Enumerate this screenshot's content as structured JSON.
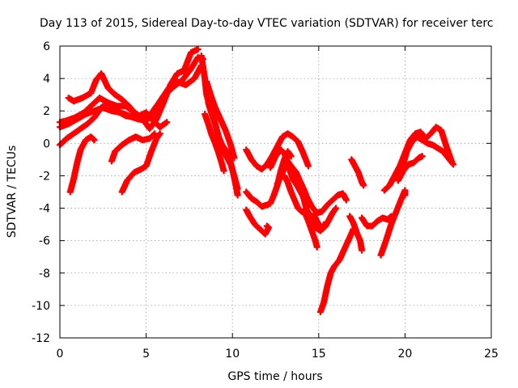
{
  "chart_data": {
    "type": "scatter",
    "title": "Day 113 of 2015, Sidereal Day-to-day VTEC variation (SDTVAR) for receiver terc",
    "xlabel": "GPS time / hours",
    "ylabel": "SDTVAR / TECUs",
    "xlim": [
      0,
      25
    ],
    "ylim": [
      -12,
      6
    ],
    "xticks": [
      0,
      5,
      10,
      15,
      20,
      25
    ],
    "yticks": [
      -12,
      -10,
      -8,
      -6,
      -4,
      -2,
      0,
      2,
      4,
      6
    ],
    "grid": true,
    "legend": "none",
    "marker": "+",
    "color": "#ff0000",
    "series": [
      {
        "values": [
          [
            0.0,
            1.3
          ],
          [
            0.4,
            1.4
          ],
          [
            0.9,
            1.6
          ],
          [
            1.4,
            1.9
          ],
          [
            1.9,
            2.4
          ],
          [
            2.3,
            2.8
          ],
          [
            2.8,
            2.5
          ],
          [
            3.3,
            2.0
          ],
          [
            3.8,
            1.7
          ],
          [
            4.3,
            1.6
          ],
          [
            4.8,
            1.5
          ],
          [
            5.2,
            1.7
          ],
          [
            5.6,
            2.3
          ],
          [
            6.1,
            3.0
          ],
          [
            6.6,
            3.5
          ],
          [
            7.1,
            3.9
          ],
          [
            7.6,
            4.6
          ],
          [
            8.0,
            5.3
          ],
          [
            8.3,
            5.2
          ]
        ]
      },
      {
        "values": [
          [
            0.0,
            1.0
          ],
          [
            0.5,
            1.2
          ],
          [
            1.0,
            1.5
          ],
          [
            1.5,
            1.8
          ],
          [
            2.0,
            2.0
          ],
          [
            2.5,
            2.2
          ],
          [
            3.0,
            2.0
          ],
          [
            3.5,
            1.9
          ],
          [
            4.0,
            1.7
          ],
          [
            4.5,
            1.5
          ],
          [
            5.0,
            1.4
          ],
          [
            5.4,
            1.8
          ],
          [
            5.8,
            2.6
          ],
          [
            6.3,
            3.4
          ],
          [
            6.8,
            3.8
          ],
          [
            7.3,
            3.6
          ],
          [
            7.8,
            4.0
          ],
          [
            8.2,
            4.8
          ]
        ]
      },
      {
        "values": [
          [
            0.5,
            2.8
          ],
          [
            0.8,
            2.6
          ],
          [
            1.3,
            2.8
          ],
          [
            1.8,
            3.1
          ],
          [
            2.1,
            3.9
          ],
          [
            2.4,
            4.3
          ],
          [
            2.8,
            3.4
          ],
          [
            3.2,
            3.0
          ],
          [
            3.6,
            2.7
          ],
          [
            4.0,
            2.3
          ],
          [
            4.4,
            1.8
          ],
          [
            4.8,
            1.5
          ],
          [
            5.2,
            0.9
          ],
          [
            5.6,
            1.5
          ],
          [
            6.0,
            2.5
          ],
          [
            6.4,
            3.6
          ],
          [
            6.8,
            4.3
          ],
          [
            7.2,
            4.5
          ],
          [
            7.6,
            5.6
          ],
          [
            8.0,
            5.8
          ]
        ]
      },
      {
        "values": [
          [
            0.0,
            -0.1
          ],
          [
            0.4,
            0.3
          ],
          [
            0.8,
            0.6
          ],
          [
            1.2,
            0.9
          ],
          [
            1.6,
            1.2
          ],
          [
            2.0,
            1.6
          ],
          [
            2.4,
            2.2
          ],
          [
            2.8,
            2.5
          ],
          [
            3.3,
            2.3
          ],
          [
            3.8,
            2.3
          ],
          [
            4.2,
            2.0
          ],
          [
            4.6,
            1.7
          ],
          [
            5.0,
            1.9
          ],
          [
            5.4,
            1.4
          ],
          [
            5.8,
            1.0
          ],
          [
            6.2,
            1.3
          ]
        ]
      },
      {
        "values": [
          [
            0.6,
            -3.0
          ],
          [
            0.8,
            -2.2
          ],
          [
            1.0,
            -1.2
          ],
          [
            1.2,
            -0.4
          ],
          [
            1.5,
            0.2
          ],
          [
            1.8,
            0.4
          ],
          [
            2.0,
            0.2
          ]
        ]
      },
      {
        "values": [
          [
            3.0,
            -1.1
          ],
          [
            3.2,
            -0.5
          ],
          [
            3.6,
            -0.1
          ],
          [
            4.0,
            0.2
          ],
          [
            4.4,
            0.4
          ],
          [
            4.8,
            0.2
          ],
          [
            5.2,
            0.3
          ],
          [
            5.5,
            0.6
          ]
        ]
      },
      {
        "values": [
          [
            3.6,
            -3.0
          ],
          [
            3.9,
            -2.3
          ],
          [
            4.3,
            -1.8
          ],
          [
            4.7,
            -1.6
          ],
          [
            5.0,
            -1.4
          ],
          [
            5.3,
            -0.5
          ],
          [
            5.6,
            0.3
          ],
          [
            5.8,
            0.6
          ]
        ]
      },
      {
        "values": [
          [
            8.2,
            5.4
          ],
          [
            8.4,
            4.0
          ],
          [
            8.5,
            3.0
          ],
          [
            8.7,
            2.2
          ],
          [
            8.9,
            1.6
          ],
          [
            9.1,
            0.8
          ],
          [
            9.3,
            0.0
          ],
          [
            9.5,
            -0.5
          ],
          [
            9.7,
            -0.9
          ],
          [
            9.9,
            -1.3
          ],
          [
            10.1,
            -2.0
          ],
          [
            10.3,
            -2.8
          ]
        ]
      },
      {
        "values": [
          [
            8.6,
            2.5
          ],
          [
            8.8,
            1.8
          ],
          [
            9.0,
            1.2
          ],
          [
            9.2,
            0.4
          ],
          [
            9.4,
            -0.1
          ],
          [
            9.6,
            -0.4
          ],
          [
            9.8,
            -0.8
          ],
          [
            10.0,
            -1.6
          ],
          [
            10.2,
            -2.6
          ],
          [
            10.3,
            -3.2
          ]
        ]
      },
      {
        "values": [
          [
            8.4,
            1.8
          ],
          [
            8.6,
            1.2
          ],
          [
            8.8,
            0.5
          ],
          [
            9.0,
            0.0
          ],
          [
            9.2,
            -0.6
          ],
          [
            9.4,
            -1.3
          ],
          [
            9.5,
            -1.7
          ]
        ]
      },
      {
        "values": [
          [
            8.5,
            3.8
          ],
          [
            8.8,
            2.8
          ],
          [
            9.0,
            2.2
          ],
          [
            9.3,
            1.5
          ],
          [
            9.6,
            0.8
          ],
          [
            9.9,
            -0.1
          ],
          [
            10.1,
            -0.9
          ]
        ]
      },
      {
        "values": [
          [
            10.8,
            -3.0
          ],
          [
            11.1,
            -3.4
          ],
          [
            11.4,
            -3.6
          ],
          [
            11.7,
            -3.9
          ],
          [
            12.0,
            -3.8
          ],
          [
            12.2,
            -3.7
          ],
          [
            12.4,
            -3.2
          ],
          [
            12.6,
            -2.6
          ],
          [
            12.8,
            -1.7
          ],
          [
            13.0,
            -1.0
          ],
          [
            13.2,
            -0.5
          ],
          [
            13.4,
            -0.8
          ]
        ]
      },
      {
        "values": [
          [
            10.8,
            -4.1
          ],
          [
            11.0,
            -4.5
          ],
          [
            11.3,
            -5.0
          ],
          [
            11.6,
            -5.3
          ],
          [
            11.9,
            -5.6
          ],
          [
            12.1,
            -5.2
          ],
          [
            12.0,
            -5.1
          ]
        ]
      },
      {
        "values": [
          [
            10.8,
            -0.4
          ],
          [
            11.1,
            -1.0
          ],
          [
            11.4,
            -1.4
          ],
          [
            11.7,
            -1.6
          ],
          [
            12.0,
            -1.3
          ],
          [
            12.3,
            -0.8
          ],
          [
            12.6,
            -0.2
          ],
          [
            12.9,
            0.4
          ],
          [
            13.2,
            0.6
          ],
          [
            13.5,
            0.4
          ],
          [
            13.8,
            0.1
          ],
          [
            14.1,
            -0.6
          ],
          [
            14.4,
            -1.4
          ]
        ]
      },
      {
        "values": [
          [
            12.2,
            -1.5
          ],
          [
            12.5,
            -0.8
          ],
          [
            12.8,
            -0.4
          ],
          [
            13.0,
            -0.6
          ],
          [
            13.2,
            -1.1
          ],
          [
            13.4,
            -1.4
          ],
          [
            13.7,
            -1.8
          ],
          [
            13.9,
            -2.3
          ],
          [
            14.2,
            -3.0
          ],
          [
            14.4,
            -3.6
          ]
        ]
      },
      {
        "values": [
          [
            12.6,
            -2.5
          ],
          [
            12.9,
            -1.8
          ],
          [
            13.1,
            -1.3
          ],
          [
            13.3,
            -1.6
          ],
          [
            13.5,
            -2.2
          ],
          [
            13.8,
            -2.7
          ],
          [
            14.1,
            -3.3
          ],
          [
            14.3,
            -4.1
          ],
          [
            14.6,
            -4.6
          ],
          [
            14.8,
            -5.2
          ],
          [
            15.1,
            -5.4
          ],
          [
            15.3,
            -5.0
          ]
        ]
      },
      {
        "values": [
          [
            13.0,
            -2.0
          ],
          [
            13.2,
            -2.4
          ],
          [
            13.4,
            -3.0
          ],
          [
            13.6,
            -3.5
          ],
          [
            13.8,
            -4.0
          ],
          [
            14.0,
            -4.2
          ],
          [
            14.2,
            -4.3
          ],
          [
            14.4,
            -4.8
          ],
          [
            14.6,
            -5.4
          ],
          [
            14.8,
            -6.0
          ],
          [
            14.9,
            -6.4
          ]
        ]
      },
      {
        "values": [
          [
            14.0,
            -2.6
          ],
          [
            14.3,
            -3.3
          ],
          [
            14.6,
            -3.9
          ],
          [
            14.9,
            -4.3
          ],
          [
            15.2,
            -4.2
          ],
          [
            15.5,
            -3.8
          ],
          [
            15.8,
            -3.5
          ],
          [
            16.1,
            -3.2
          ],
          [
            16.4,
            -3.1
          ],
          [
            16.6,
            -3.5
          ]
        ]
      },
      {
        "values": [
          [
            14.7,
            -4.4
          ],
          [
            15.0,
            -5.0
          ],
          [
            15.2,
            -5.3
          ],
          [
            15.4,
            -5.1
          ],
          [
            15.6,
            -4.7
          ],
          [
            15.8,
            -4.3
          ],
          [
            16.0,
            -4.0
          ]
        ]
      },
      {
        "values": [
          [
            15.1,
            -10.4
          ],
          [
            15.3,
            -9.8
          ],
          [
            15.5,
            -8.8
          ],
          [
            15.7,
            -8.0
          ],
          [
            15.9,
            -7.6
          ],
          [
            16.2,
            -7.2
          ],
          [
            16.5,
            -6.5
          ],
          [
            16.8,
            -5.8
          ],
          [
            17.0,
            -5.3
          ]
        ]
      },
      {
        "values": [
          [
            16.9,
            -1.0
          ],
          [
            17.1,
            -1.4
          ],
          [
            17.3,
            -1.8
          ],
          [
            17.5,
            -2.4
          ],
          [
            17.6,
            -2.6
          ]
        ]
      },
      {
        "values": [
          [
            16.8,
            -4.5
          ],
          [
            17.0,
            -4.9
          ],
          [
            17.2,
            -5.5
          ],
          [
            17.4,
            -6.0
          ],
          [
            17.5,
            -6.6
          ]
        ]
      },
      {
        "values": [
          [
            17.5,
            -4.6
          ],
          [
            17.8,
            -5.1
          ],
          [
            18.1,
            -5.1
          ],
          [
            18.4,
            -4.8
          ],
          [
            18.7,
            -4.6
          ],
          [
            19.0,
            -4.7
          ],
          [
            19.2,
            -4.5
          ]
        ]
      },
      {
        "values": [
          [
            18.6,
            -6.9
          ],
          [
            18.9,
            -6.0
          ],
          [
            19.2,
            -5.0
          ],
          [
            19.5,
            -4.2
          ],
          [
            19.8,
            -3.4
          ],
          [
            20.0,
            -2.9
          ],
          [
            20.0,
            -3.2
          ]
        ]
      },
      {
        "values": [
          [
            18.8,
            -2.9
          ],
          [
            19.1,
            -2.6
          ],
          [
            19.4,
            -2.0
          ],
          [
            19.7,
            -1.4
          ],
          [
            20.0,
            -0.6
          ],
          [
            20.3,
            0.2
          ],
          [
            20.6,
            0.6
          ],
          [
            20.9,
            0.7
          ],
          [
            21.2,
            0.3
          ],
          [
            21.5,
            0.6
          ],
          [
            21.8,
            1.0
          ],
          [
            22.1,
            0.8
          ],
          [
            22.4,
            -0.2
          ],
          [
            22.7,
            -1.1
          ]
        ]
      },
      {
        "values": [
          [
            19.8,
            -1.7
          ],
          [
            20.1,
            -0.5
          ],
          [
            20.4,
            0.1
          ],
          [
            20.7,
            0.4
          ],
          [
            21.0,
            0.2
          ],
          [
            21.3,
            0.0
          ],
          [
            21.6,
            -0.1
          ],
          [
            21.9,
            -0.3
          ],
          [
            22.2,
            -0.5
          ],
          [
            22.5,
            -0.9
          ],
          [
            22.8,
            -1.3
          ]
        ]
      },
      {
        "values": [
          [
            19.6,
            -2.3
          ],
          [
            19.9,
            -1.7
          ],
          [
            20.2,
            -1.3
          ],
          [
            20.5,
            -1.2
          ],
          [
            20.8,
            -0.9
          ],
          [
            21.0,
            -0.8
          ]
        ]
      }
    ]
  }
}
